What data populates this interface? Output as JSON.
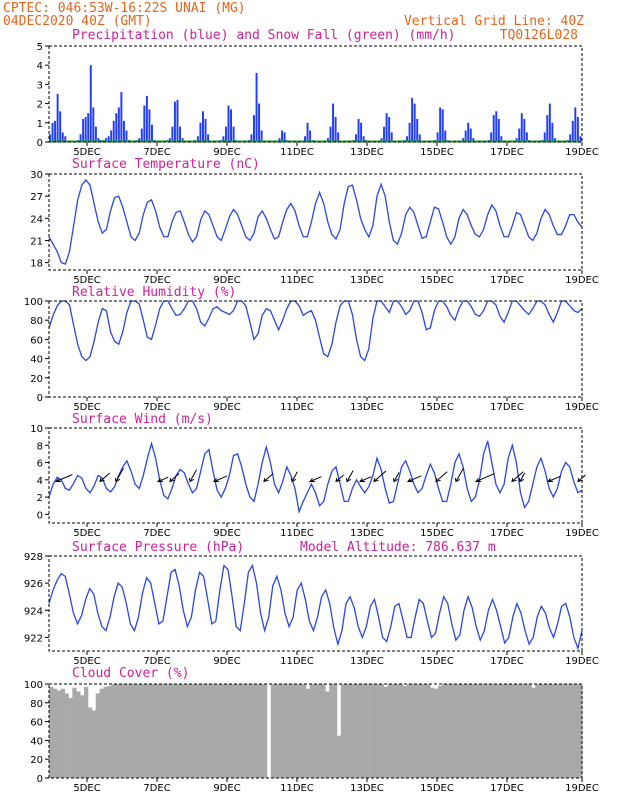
{
  "header": {
    "left_line1": "CPTEC:   046:53W-16:22S   UNAI (MG)",
    "left_line2": "04DEC2020 40Z (GMT)",
    "right_line1": "Vertical Grid Line: 40Z",
    "right_line2": "TQ0126L028"
  },
  "colors": {
    "header": "#e8641b",
    "title": "#d0209a",
    "precip": "#1f3cff",
    "snow": "#1e9a1e",
    "line": "#2a46e6",
    "cloud": "#a9a9a9",
    "arrow": "#000000"
  },
  "chart_data": [
    {
      "type": "bar",
      "title": "Precipitation (blue) and Snow Fall (green) (mm/h)",
      "x_tick_labels": [
        "5DEC",
        "7DEC",
        "9DEC",
        "11DEC",
        "13DEC",
        "15DEC",
        "17DEC",
        "19DEC"
      ],
      "ylim": [
        0,
        5
      ],
      "yticks": [
        0,
        1,
        2,
        3,
        4,
        5
      ],
      "series": [
        {
          "name": "Precipitation",
          "values": [
            0.4,
            1.0,
            1.1,
            2.5,
            1.6,
            0.5,
            0.3,
            0.0,
            0.0,
            0.0,
            0.0,
            0.1,
            0.4,
            1.2,
            1.3,
            1.5,
            4.0,
            1.8,
            0.8,
            0.2,
            0.1,
            0.1,
            0.2,
            0.3,
            0.6,
            1.1,
            1.5,
            1.8,
            2.6,
            1.1,
            0.6,
            0.1,
            0.0,
            0.0,
            0.1,
            0.2,
            0.7,
            1.9,
            2.4,
            1.7,
            0.9,
            0.1,
            0.0,
            0.0,
            0.0,
            0.0,
            0.1,
            0.2,
            0.8,
            2.1,
            2.2,
            0.8,
            0.2,
            0.0,
            0.0,
            0.0,
            0.0,
            0.1,
            0.3,
            1.0,
            1.6,
            1.2,
            0.4,
            0.0,
            0.0,
            0.0,
            0.0,
            0.1,
            0.3,
            0.8,
            1.9,
            1.7,
            0.8,
            0.1,
            0.0,
            0.0,
            0.0,
            0.0,
            0.1,
            0.4,
            1.4,
            3.6,
            2.0,
            0.6,
            0.0,
            0.0,
            0.0,
            0.0,
            0.0,
            0.0,
            0.2,
            0.6,
            0.5,
            0.1,
            0.0,
            0.0,
            0.0,
            0.0,
            0.0,
            0.0,
            0.3,
            1.0,
            0.6,
            0.1,
            0.0,
            0.0,
            0.0,
            0.0,
            0.0,
            0.2,
            0.8,
            2.0,
            1.3,
            0.5,
            0.0,
            0.0,
            0.0,
            0.0,
            0.0,
            0.1,
            0.4,
            1.2,
            1.0,
            0.3,
            0.1,
            0.0,
            0.0,
            0.0,
            0.0,
            0.0,
            0.2,
            0.8,
            1.5,
            1.3,
            0.5,
            0.0,
            0.0,
            0.0,
            0.0,
            0.1,
            0.3,
            1.0,
            2.3,
            2.0,
            1.2,
            0.4,
            0.0,
            0.0,
            0.0,
            0.0,
            0.0,
            0.1,
            0.5,
            1.8,
            1.7,
            0.6,
            0.1,
            0.0,
            0.0,
            0.0,
            0.0,
            0.0,
            0.2,
            0.6,
            1.0,
            0.7,
            0.2,
            0.0,
            0.0,
            0.0,
            0.0,
            0.0,
            0.1,
            0.5,
            1.4,
            1.6,
            1.2,
            0.3,
            0.0,
            0.0,
            0.0,
            0.0,
            0.0,
            0.2,
            0.7,
            1.5,
            1.2,
            0.5,
            0.1,
            0.0,
            0.0,
            0.0,
            0.0,
            0.1,
            0.5,
            1.4,
            2.0,
            1.0,
            0.2,
            0.0,
            0.0,
            0.0,
            0.0,
            0.1,
            0.4,
            1.1,
            1.8,
            1.3,
            0.3
          ]
        },
        {
          "name": "Snow Fall",
          "values": [
            0
          ]
        }
      ]
    },
    {
      "type": "line",
      "title": "Surface Temperature (nC)",
      "x_tick_labels": [
        "5DEC",
        "7DEC",
        "9DEC",
        "11DEC",
        "13DEC",
        "15DEC",
        "17DEC",
        "19DEC"
      ],
      "ylim": [
        17,
        30
      ],
      "yticks": [
        18,
        21,
        24,
        27,
        30
      ],
      "values": [
        21.5,
        20.5,
        19.5,
        18.0,
        17.8,
        19.5,
        23.0,
        26.5,
        28.5,
        29.2,
        28.5,
        26.0,
        23.5,
        22.0,
        22.5,
        25.0,
        26.8,
        27.0,
        25.5,
        23.5,
        21.5,
        21.0,
        22.0,
        24.5,
        26.2,
        26.5,
        25.0,
        22.8,
        21.5,
        21.5,
        23.5,
        24.8,
        25.0,
        23.5,
        21.8,
        20.8,
        21.5,
        23.8,
        25.0,
        24.5,
        23.0,
        21.5,
        21.0,
        22.5,
        24.2,
        25.2,
        24.5,
        23.0,
        21.5,
        21.0,
        22.0,
        24.2,
        25.0,
        24.0,
        22.5,
        21.2,
        21.5,
        23.5,
        25.2,
        26.0,
        25.0,
        23.0,
        21.5,
        21.5,
        23.5,
        26.0,
        27.5,
        26.0,
        23.5,
        21.8,
        21.2,
        22.5,
        26.0,
        28.3,
        28.5,
        26.5,
        24.0,
        22.5,
        21.5,
        23.0,
        27.0,
        28.6,
        27.0,
        23.5,
        21.0,
        20.5,
        22.0,
        24.5,
        25.5,
        24.8,
        23.0,
        21.3,
        21.5,
        23.5,
        25.5,
        25.3,
        23.5,
        21.5,
        20.5,
        21.5,
        24.0,
        25.2,
        24.5,
        23.0,
        21.8,
        21.5,
        22.5,
        24.5,
        25.8,
        25.0,
        23.0,
        21.5,
        21.5,
        23.0,
        24.8,
        24.5,
        23.0,
        21.5,
        21.0,
        22.0,
        24.0,
        25.2,
        24.5,
        23.0,
        21.8,
        21.8,
        23.0,
        24.5,
        24.5,
        23.5,
        22.8
      ]
    },
    {
      "type": "line",
      "title": "Relative Humidity (%)",
      "x_tick_labels": [
        "5DEC",
        "7DEC",
        "9DEC",
        "11DEC",
        "13DEC",
        "15DEC",
        "17DEC",
        "19DEC"
      ],
      "ylim": [
        0,
        100
      ],
      "yticks": [
        0,
        20,
        40,
        60,
        80,
        100
      ],
      "values": [
        72,
        85,
        95,
        100,
        100,
        96,
        75,
        55,
        42,
        38,
        42,
        58,
        78,
        92,
        90,
        68,
        58,
        55,
        68,
        88,
        100,
        100,
        97,
        80,
        62,
        60,
        75,
        92,
        100,
        100,
        92,
        85,
        86,
        92,
        100,
        100,
        92,
        78,
        74,
        82,
        92,
        94,
        90,
        88,
        86,
        90,
        100,
        100,
        95,
        78,
        60,
        66,
        85,
        92,
        90,
        80,
        70,
        80,
        92,
        100,
        100,
        95,
        85,
        88,
        90,
        80,
        62,
        45,
        42,
        55,
        78,
        95,
        100,
        100,
        86,
        60,
        42,
        38,
        50,
        82,
        100,
        100,
        94,
        88,
        100,
        100,
        94,
        86,
        90,
        100,
        100,
        88,
        70,
        72,
        90,
        100,
        100,
        94,
        85,
        80,
        92,
        100,
        100,
        94,
        86,
        84,
        90,
        100,
        100,
        96,
        84,
        78,
        88,
        100,
        100,
        95,
        90,
        86,
        92,
        100,
        100,
        96,
        86,
        78,
        88,
        100,
        100,
        95,
        90,
        88,
        92
      ]
    },
    {
      "type": "line",
      "title": "Surface Wind (m/s)",
      "x_tick_labels": [
        "5DEC",
        "7DEC",
        "9DEC",
        "11DEC",
        "13DEC",
        "15DEC",
        "17DEC",
        "19DEC"
      ],
      "ylim": [
        -1,
        10
      ],
      "yticks": [
        0,
        2,
        4,
        6,
        8,
        10
      ],
      "values": [
        2.0,
        3.5,
        4.3,
        4.0,
        3.0,
        2.8,
        3.6,
        4.5,
        4.2,
        3.0,
        2.5,
        3.3,
        4.5,
        4.2,
        3.0,
        2.6,
        3.2,
        4.5,
        5.5,
        6.2,
        5.0,
        3.5,
        3.0,
        4.5,
        6.5,
        8.2,
        6.5,
        4.0,
        2.2,
        1.8,
        3.0,
        4.5,
        5.2,
        4.8,
        3.5,
        2.5,
        3.0,
        5.0,
        7.0,
        7.5,
        5.0,
        2.8,
        2.0,
        3.0,
        4.5,
        6.8,
        7.0,
        5.5,
        3.5,
        2.0,
        1.5,
        3.5,
        6.0,
        7.8,
        6.0,
        3.5,
        2.5,
        3.8,
        5.5,
        4.5,
        3.0,
        0.3,
        1.5,
        2.5,
        3.5,
        2.5,
        1.0,
        1.5,
        3.5,
        5.0,
        5.5,
        3.5,
        1.5,
        1.5,
        3.0,
        4.0,
        3.2,
        2.5,
        3.2,
        4.5,
        6.5,
        5.2,
        3.0,
        1.3,
        1.5,
        3.5,
        5.5,
        6.2,
        5.0,
        3.5,
        2.5,
        3.0,
        4.5,
        5.8,
        4.8,
        3.0,
        1.5,
        1.5,
        3.5,
        6.0,
        7.0,
        5.5,
        3.0,
        1.5,
        2.0,
        4.0,
        7.0,
        8.5,
        6.0,
        3.5,
        2.5,
        3.5,
        6.5,
        8.0,
        6.0,
        2.5,
        0.8,
        1.5,
        3.5,
        5.5,
        6.5,
        5.0,
        3.0,
        2.0,
        3.0,
        5.0,
        6.0,
        5.5,
        3.8,
        2.5,
        2.8
      ]
    },
    {
      "type": "line",
      "title": "Surface Pressure (hPa)",
      "subtitle": "Model Altitude: 786.637 m",
      "x_tick_labels": [
        "5DEC",
        "7DEC",
        "9DEC",
        "11DEC",
        "13DEC",
        "15DEC",
        "17DEC",
        "19DEC"
      ],
      "ylim": [
        921,
        928
      ],
      "yticks": [
        922,
        924,
        926,
        928
      ],
      "values": [
        924.5,
        925.5,
        926.2,
        926.7,
        926.5,
        925.2,
        923.8,
        923.0,
        923.6,
        924.8,
        925.6,
        925.2,
        923.8,
        922.8,
        922.5,
        923.5,
        925.0,
        926.0,
        925.7,
        924.5,
        923.0,
        922.5,
        923.5,
        925.3,
        926.4,
        926.0,
        924.5,
        923.0,
        923.2,
        925.0,
        926.8,
        927.0,
        925.8,
        924.0,
        922.8,
        923.5,
        925.5,
        926.8,
        926.5,
        924.8,
        923.0,
        923.2,
        925.5,
        927.3,
        927.0,
        925.0,
        922.8,
        922.5,
        924.5,
        926.8,
        927.3,
        926.0,
        923.8,
        922.5,
        923.5,
        925.8,
        926.5,
        925.5,
        923.8,
        922.8,
        923.5,
        925.5,
        926.0,
        924.8,
        923.2,
        922.5,
        923.5,
        925.0,
        925.5,
        924.5,
        922.7,
        921.5,
        922.5,
        924.5,
        925.0,
        924.2,
        922.8,
        922.0,
        922.8,
        924.3,
        924.8,
        923.5,
        922.0,
        921.7,
        922.8,
        924.3,
        924.5,
        923.3,
        922.0,
        922.0,
        923.5,
        924.8,
        924.5,
        923.2,
        922.0,
        922.3,
        923.8,
        925.0,
        924.5,
        923.0,
        921.8,
        922.2,
        924.0,
        925.0,
        924.2,
        922.8,
        921.8,
        922.5,
        924.0,
        924.8,
        924.0,
        922.8,
        921.6,
        922.0,
        923.5,
        924.5,
        923.8,
        922.5,
        921.5,
        922.0,
        923.5,
        924.3,
        923.8,
        922.7,
        922.0,
        923.0,
        924.3,
        924.5,
        923.5,
        922.0,
        921.2,
        922.5
      ]
    },
    {
      "type": "area",
      "title": "Cloud Cover (%)",
      "x_tick_labels": [
        "5DEC",
        "7DEC",
        "9DEC",
        "11DEC",
        "13DEC",
        "15DEC",
        "17DEC",
        "19DEC"
      ],
      "ylim": [
        0,
        100
      ],
      "yticks": [
        0,
        20,
        40,
        60,
        80,
        100
      ],
      "values": [
        97,
        95,
        93,
        95,
        90,
        85,
        96,
        92,
        88,
        97,
        75,
        72,
        90,
        95,
        97,
        98,
        100,
        100,
        100,
        100,
        100,
        100,
        100,
        100,
        100,
        100,
        100,
        100,
        100,
        100,
        100,
        100,
        100,
        100,
        100,
        100,
        100,
        100,
        100,
        100,
        100,
        100,
        100,
        100,
        100,
        100,
        100,
        100,
        100,
        100,
        100,
        100,
        100,
        100,
        100,
        100,
        0,
        100,
        100,
        100,
        100,
        100,
        100,
        100,
        100,
        100,
        95,
        100,
        100,
        100,
        100,
        92,
        100,
        100,
        45,
        100,
        100,
        100,
        100,
        100,
        100,
        100,
        100,
        100,
        100,
        100,
        97,
        100,
        100,
        100,
        100,
        98,
        100,
        100,
        100,
        100,
        100,
        100,
        96,
        95,
        98,
        100,
        100,
        100,
        100,
        100,
        100,
        100,
        100,
        100,
        100,
        100,
        100,
        100,
        100,
        100,
        100,
        100,
        100,
        100,
        100,
        100,
        100,
        100,
        96,
        100,
        100,
        100,
        100,
        100,
        100,
        100,
        100,
        100,
        100,
        100,
        100
      ]
    }
  ]
}
